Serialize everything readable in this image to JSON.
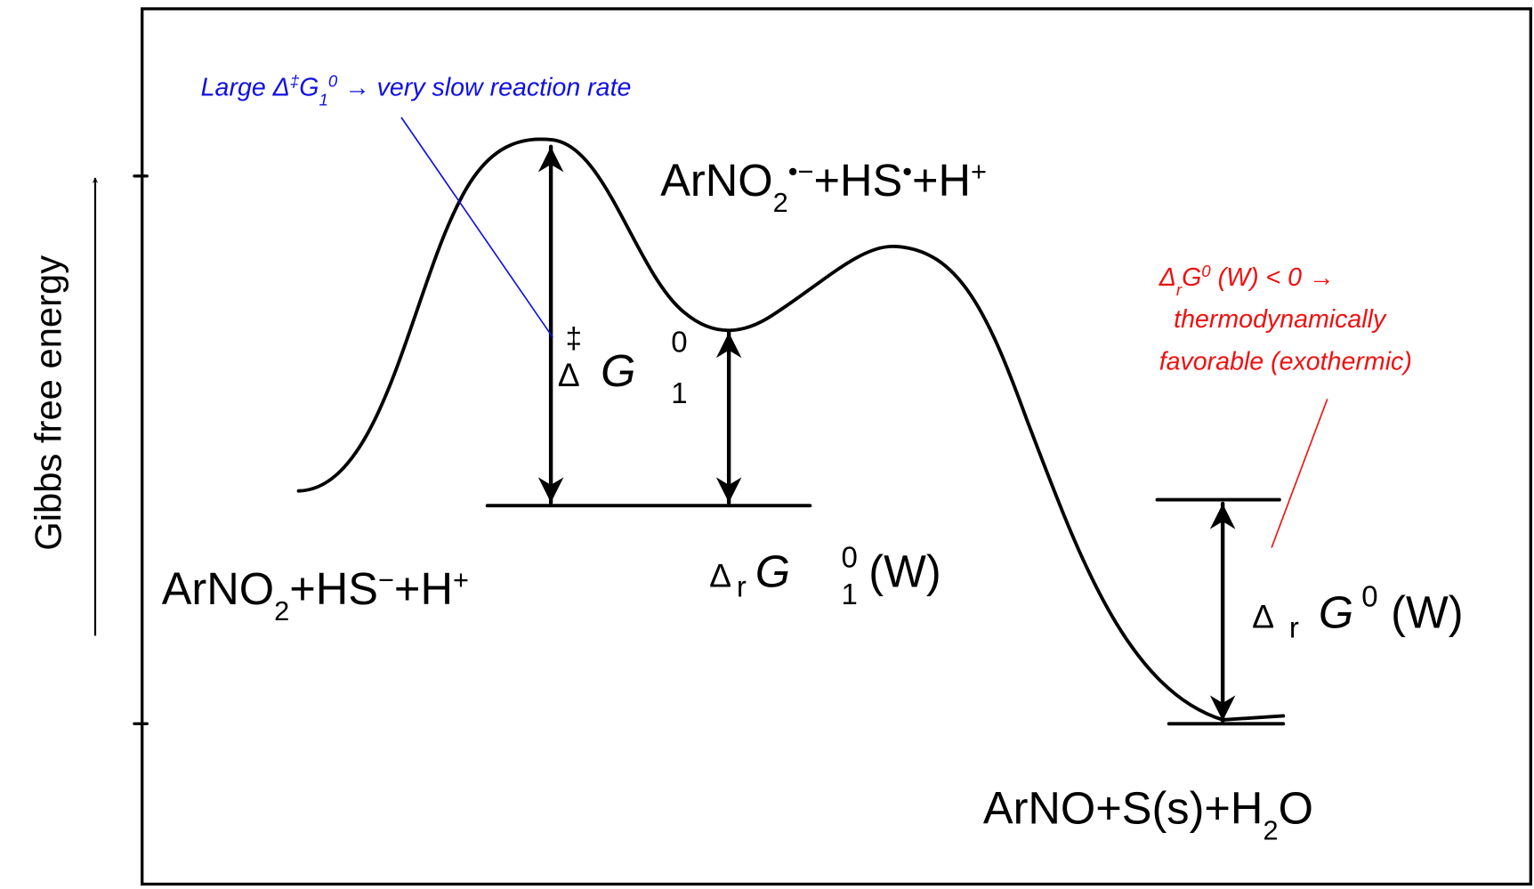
{
  "axis_label": "Gibbs free energy",
  "species": {
    "intermediate": [
      "ArNO",
      "2",
      "•−",
      "+HS",
      "•",
      "+H",
      "+"
    ],
    "reactants": [
      "ArNO",
      "2",
      "+HS",
      "−",
      "+H",
      "+"
    ],
    "products": [
      "ArNO+S(s)+H",
      "2",
      "O"
    ]
  },
  "energies": {
    "barrier": [
      "Δ",
      "‡",
      "G",
      "0",
      "1"
    ],
    "reaction_step": [
      "Δ",
      "r",
      "G",
      "0",
      "1",
      "(W)"
    ],
    "reaction_overall": [
      "Δ",
      "r",
      "G",
      "0",
      "(W)"
    ]
  },
  "annotations": {
    "kinetic": [
      "Large Δ",
      "‡",
      "G",
      "1",
      "0",
      " → very slow reaction rate"
    ],
    "thermodynamic": [
      [
        "Δ",
        "r",
        "G",
        "0",
        " (W) < 0 →"
      ],
      "thermodynamically",
      "favorable (exothermic)"
    ]
  }
}
